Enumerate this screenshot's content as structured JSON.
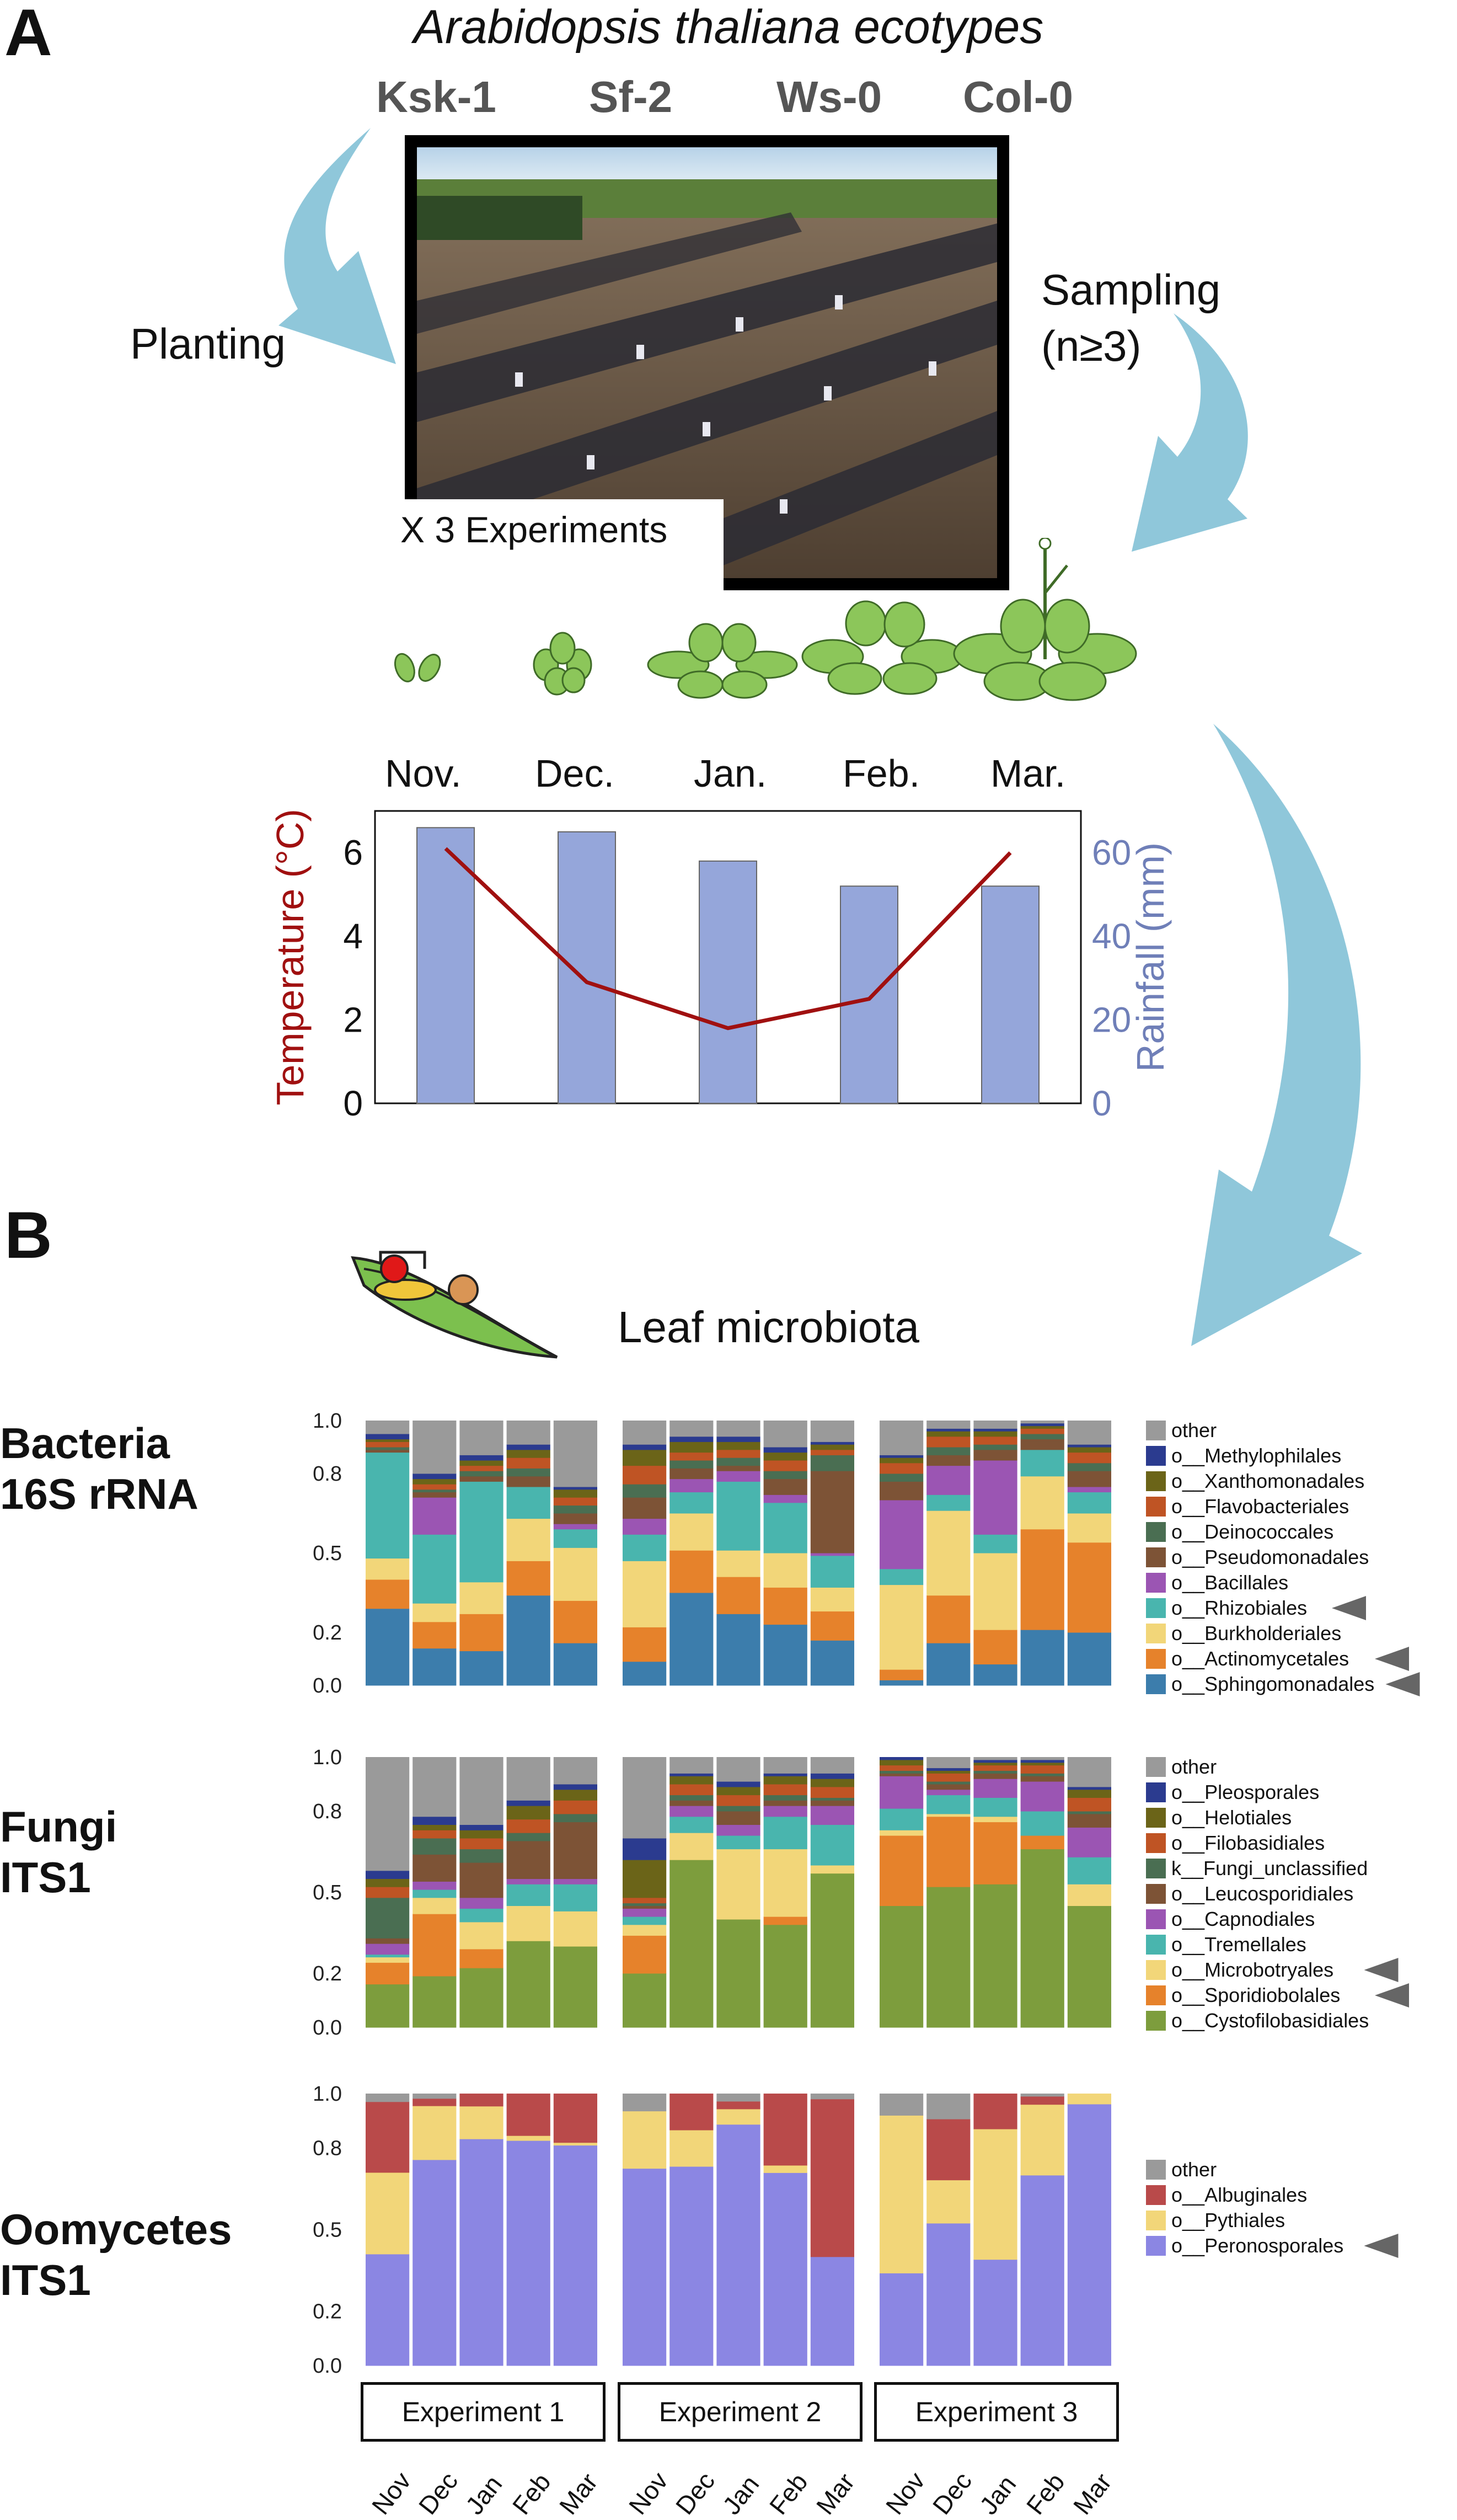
{
  "panelA": {
    "letter": "A",
    "title": "Arabidopsis thaliana ecotypes",
    "ecotypes": [
      "Ksk-1",
      "Sf-2",
      "Ws-0",
      "Col-0"
    ],
    "planting": "Planting",
    "sampling": [
      "Sampling",
      "(n≥3)"
    ],
    "experiments": "X 3 Experiments",
    "months": [
      "Nov.",
      "Dec.",
      "Jan.",
      "Feb.",
      "Mar."
    ],
    "climate_chart": {
      "type": "bar",
      "categories": [
        "Nov.",
        "Dec.",
        "Jan.",
        "Feb.",
        "Mar."
      ],
      "rainfall": [
        66,
        65,
        58,
        52,
        52
      ],
      "temperature": [
        6.1,
        2.9,
        1.8,
        2.5,
        6.0
      ],
      "ylabel_left": "Temperature (°C)",
      "ylabel_right": "Rainfall (mm)",
      "yticks_left": [
        "0",
        "2",
        "4",
        "6"
      ],
      "yticks_right": [
        "0",
        "20",
        "40",
        "60"
      ],
      "ylim_left": [
        0,
        7
      ],
      "ylim_right": [
        0,
        70
      ],
      "bar_color": "#95a6da",
      "line_color": "#a01010"
    }
  },
  "panelB": {
    "letter": "B",
    "title": "Leaf microbiota",
    "experiments": [
      "Experiment 1",
      "Experiment 2",
      "Experiment 3"
    ],
    "months": [
      "Nov",
      "Dec",
      "Jan",
      "Feb",
      "Mar"
    ],
    "yticks": [
      "0.0",
      "0.2",
      "0.5",
      "0.8",
      "1.0"
    ]
  },
  "chart_data": [
    {
      "type": "bar",
      "stacked": true,
      "group": "Bacteria 16S rRNA",
      "group_lines": [
        "Bacteria",
        "16S rRNA"
      ],
      "experiments": [
        "Experiment 1",
        "Experiment 2",
        "Experiment 3"
      ],
      "categories": [
        "Nov",
        "Dec",
        "Jan",
        "Feb",
        "Mar"
      ],
      "series": [
        {
          "name": "o__Sphingomonadales",
          "color": "#3c7dac",
          "arrow": true
        },
        {
          "name": "o__Actinomycetales",
          "color": "#e6822b",
          "arrow": true
        },
        {
          "name": "o__Burkholderiales",
          "color": "#f2d679"
        },
        {
          "name": "o__Rhizobiales",
          "color": "#49b5ae",
          "arrow": true
        },
        {
          "name": "o__Bacillales",
          "color": "#9b55b3"
        },
        {
          "name": "o__Pseudomonadales",
          "color": "#7d5336"
        },
        {
          "name": "o__Deinococcales",
          "color": "#4a6e52"
        },
        {
          "name": "o__Flavobacteriales",
          "color": "#bf5424"
        },
        {
          "name": "o__Xanthomonadales",
          "color": "#6b6418"
        },
        {
          "name": "o__Methylophilales",
          "color": "#2b3b8f"
        },
        {
          "name": "other",
          "color": "#9a9a9a"
        }
      ],
      "values": [
        [
          [
            0.29,
            0.11,
            0.08,
            0.4,
            0,
            0.01,
            0.01,
            0.02,
            0.01,
            0.02,
            0.05
          ],
          [
            0.14,
            0.1,
            0.07,
            0.26,
            0.14,
            0.02,
            0.01,
            0.02,
            0.02,
            0.02,
            0.2
          ],
          [
            0.13,
            0.14,
            0.12,
            0.38,
            0,
            0.02,
            0.02,
            0.02,
            0.02,
            0.02,
            0.13
          ],
          [
            0.34,
            0.13,
            0.16,
            0.12,
            0,
            0.04,
            0.03,
            0.04,
            0.03,
            0.02,
            0.09
          ],
          [
            0.16,
            0.16,
            0.2,
            0.07,
            0.02,
            0.04,
            0.03,
            0.03,
            0.03,
            0.01,
            0.25
          ]
        ],
        [
          [
            0.09,
            0.13,
            0.25,
            0.1,
            0.06,
            0.08,
            0.05,
            0.07,
            0.06,
            0.02,
            0.09
          ],
          [
            0.35,
            0.16,
            0.14,
            0.08,
            0.05,
            0.04,
            0.03,
            0.03,
            0.04,
            0.02,
            0.06
          ],
          [
            0.27,
            0.14,
            0.1,
            0.26,
            0.04,
            0.02,
            0.03,
            0.03,
            0.03,
            0.02,
            0.06
          ],
          [
            0.23,
            0.14,
            0.13,
            0.19,
            0.03,
            0.06,
            0.03,
            0.04,
            0.03,
            0.02,
            0.1
          ],
          [
            0.17,
            0.11,
            0.09,
            0.12,
            0.01,
            0.31,
            0.06,
            0.02,
            0.02,
            0.01,
            0.08
          ]
        ],
        [
          [
            0.02,
            0.04,
            0.32,
            0.06,
            0.26,
            0.07,
            0.03,
            0.04,
            0.02,
            0.01,
            0.13
          ],
          [
            0.16,
            0.18,
            0.32,
            0.06,
            0.11,
            0.04,
            0.03,
            0.04,
            0.02,
            0.01,
            0.03
          ],
          [
            0.08,
            0.13,
            0.29,
            0.07,
            0.28,
            0.04,
            0.02,
            0.03,
            0.02,
            0.01,
            0.03
          ],
          [
            0.21,
            0.38,
            0.2,
            0.1,
            0,
            0.04,
            0.02,
            0.02,
            0.01,
            0.01,
            0.01
          ],
          [
            0.2,
            0.34,
            0.11,
            0.08,
            0.02,
            0.06,
            0.03,
            0.04,
            0.02,
            0.01,
            0.09
          ]
        ]
      ]
    },
    {
      "type": "bar",
      "stacked": true,
      "group": "Fungi ITS1",
      "group_lines": [
        "Fungi",
        "ITS1"
      ],
      "experiments": [
        "Experiment 1",
        "Experiment 2",
        "Experiment 3"
      ],
      "categories": [
        "Nov",
        "Dec",
        "Jan",
        "Feb",
        "Mar"
      ],
      "series": [
        {
          "name": "o__Cystofilobasidiales",
          "color": "#7d9d3d"
        },
        {
          "name": "o__Sporidiobolales",
          "color": "#e6822b",
          "arrow": true
        },
        {
          "name": "o__Microbotryales",
          "color": "#f2d679",
          "arrow": true
        },
        {
          "name": "o__Tremellales",
          "color": "#49b5ae"
        },
        {
          "name": "o__Capnodiales",
          "color": "#9b55b3"
        },
        {
          "name": "o__Leucosporidiales",
          "color": "#7d5336"
        },
        {
          "name": "k__Fungi_unclassified",
          "color": "#4a6e52"
        },
        {
          "name": "o__Filobasidiales",
          "color": "#bf5424"
        },
        {
          "name": "o__Helotiales",
          "color": "#6b6418"
        },
        {
          "name": "o__Pleosporales",
          "color": "#2b3b8f"
        },
        {
          "name": "other",
          "color": "#9a9a9a"
        }
      ],
      "values": [
        [
          [
            0.16,
            0.08,
            0.02,
            0.01,
            0.04,
            0.02,
            0.15,
            0.04,
            0.03,
            0.03,
            0.42
          ],
          [
            0.19,
            0.23,
            0.06,
            0.03,
            0.03,
            0.1,
            0.06,
            0.03,
            0.02,
            0.03,
            0.22
          ],
          [
            0.22,
            0.07,
            0.1,
            0.05,
            0.04,
            0.13,
            0.05,
            0.04,
            0.03,
            0.02,
            0.25
          ],
          [
            0.32,
            0.0,
            0.13,
            0.08,
            0.02,
            0.14,
            0.03,
            0.05,
            0.05,
            0.02,
            0.16
          ],
          [
            0.3,
            0.0,
            0.13,
            0.1,
            0.02,
            0.21,
            0.03,
            0.05,
            0.04,
            0.02,
            0.1
          ]
        ],
        [
          [
            0.2,
            0.14,
            0.04,
            0.03,
            0.03,
            0.01,
            0.01,
            0.02,
            0.14,
            0.08,
            0.3
          ],
          [
            0.62,
            0.0,
            0.1,
            0.06,
            0.04,
            0.02,
            0.02,
            0.04,
            0.03,
            0.01,
            0.06
          ],
          [
            0.4,
            0.0,
            0.26,
            0.05,
            0.04,
            0.05,
            0.02,
            0.04,
            0.03,
            0.02,
            0.09
          ],
          [
            0.38,
            0.03,
            0.25,
            0.12,
            0.04,
            0.02,
            0.02,
            0.04,
            0.03,
            0.01,
            0.06
          ],
          [
            0.57,
            0.0,
            0.03,
            0.15,
            0.07,
            0.02,
            0.01,
            0.04,
            0.03,
            0.02,
            0.06
          ]
        ],
        [
          [
            0.45,
            0.26,
            0.02,
            0.08,
            0.12,
            0.01,
            0.01,
            0.02,
            0.02,
            0.01,
            0.0
          ],
          [
            0.52,
            0.26,
            0.01,
            0.07,
            0.02,
            0.02,
            0.01,
            0.03,
            0.01,
            0.01,
            0.04
          ],
          [
            0.53,
            0.23,
            0.02,
            0.07,
            0.07,
            0.02,
            0.01,
            0.02,
            0.01,
            0.01,
            0.01
          ],
          [
            0.66,
            0.05,
            0.0,
            0.09,
            0.11,
            0.02,
            0.01,
            0.03,
            0.01,
            0.01,
            0.01
          ],
          [
            0.45,
            0.0,
            0.08,
            0.1,
            0.11,
            0.05,
            0.01,
            0.05,
            0.03,
            0.01,
            0.11
          ]
        ]
      ]
    },
    {
      "type": "bar",
      "stacked": true,
      "group": "Oomycetes ITS1",
      "group_lines": [
        "Oomycetes",
        "ITS1"
      ],
      "experiments": [
        "Experiment 1",
        "Experiment 2",
        "Experiment 3"
      ],
      "categories": [
        "Nov",
        "Dec",
        "Jan",
        "Feb",
        "Mar"
      ],
      "series": [
        {
          "name": "o__Peronosporales",
          "color": "#8b86e3",
          "arrow": true
        },
        {
          "name": "o__Pythiales",
          "color": "#f2d679"
        },
        {
          "name": "o__Albuginales",
          "color": "#b94a4a"
        },
        {
          "name": "other",
          "color": "#9a9a9a"
        }
      ],
      "values": [
        [
          [
            0.41,
            0.3,
            0.26,
            0.03
          ],
          [
            0.84,
            0.22,
            0.03,
            0.02
          ],
          [
            0.9,
            0.13,
            0.05,
            0.0
          ],
          [
            0.91,
            0.02,
            0.17,
            0.0
          ],
          [
            0.81,
            0.01,
            0.18,
            0.0
          ]
        ],
        [
          [
            0.79,
            0.23,
            0.0,
            0.07
          ],
          [
            0.82,
            0.15,
            0.15,
            0.0
          ],
          [
            0.94,
            0.06,
            0.03,
            0.03
          ],
          [
            0.78,
            0.03,
            0.29,
            0.0
          ],
          [
            0.4,
            0.0,
            0.58,
            0.02
          ]
        ],
        [
          [
            0.34,
            0.58,
            0.0,
            0.08
          ],
          [
            0.56,
            0.17,
            0.24,
            0.1
          ],
          [
            0.39,
            0.48,
            0.13,
            0.0
          ],
          [
            0.7,
            0.26,
            0.03,
            0.01
          ],
          [
            1.0,
            0.04,
            0.0,
            0.0
          ]
        ]
      ]
    }
  ]
}
